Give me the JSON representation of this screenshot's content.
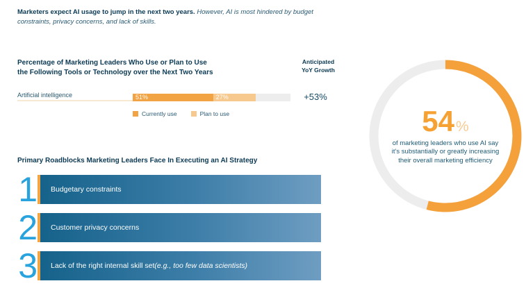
{
  "intro": {
    "bold": "Marketers expect AI usage to jump in the next two years.",
    "italic": " However, AI is most hindered by budget constraints, privacy concerns, and lack of skills."
  },
  "usage_chart": {
    "title_line1": "Percentage of Marketing Leaders Who Use or Plan to Use",
    "title_line2": "the Following Tools or Technology over the Next Two Years",
    "growth_header": "Anticipated YoY Growth",
    "category": "Artificial intelligence",
    "currently_use_label": "51%",
    "plan_to_use_label": "27%",
    "growth_value": "+53%",
    "legend": [
      {
        "label": "Currently use",
        "color": "#f2a444"
      },
      {
        "label": "Plan to use",
        "color": "#f7c98e"
      }
    ]
  },
  "roadblocks": {
    "title": "Primary Roadblocks Marketing Leaders Face In Executing an AI Strategy",
    "items": [
      {
        "rank": "1",
        "label": "Budgetary constraints",
        "label_italic": ""
      },
      {
        "rank": "2",
        "label": "Customer privacy concerns",
        "label_italic": ""
      },
      {
        "rank": "3",
        "label": "Lack of the right internal skill set ",
        "label_italic": "(e.g., too few data scientists)"
      }
    ]
  },
  "donut": {
    "value": 54,
    "unit": "%",
    "caption_lines": [
      "of marketing leaders who use AI say",
      "it’s substantially or greatly increasing",
      "their overall marketing efficiency"
    ]
  },
  "colors": {
    "navy": "#0c3a54",
    "body_navy": "#2a5a74",
    "orange": "#f2a444",
    "light_orange": "#f7c98e",
    "track_gray": "#ededed",
    "label_underline": "#f8ead2",
    "number_blue": "#29a3dd",
    "bar_gradient_start": "#15628b",
    "bar_gradient_end": "#6f9dc2",
    "donut_orange": "#f5a13b",
    "donut_gray": "#ededed"
  },
  "chart_data": [
    {
      "type": "bar",
      "subtype": "horizontal-stacked",
      "title": "Percentage of Marketing Leaders Who Use or Plan to Use the Following Tools or Technology over the Next Two Years",
      "categories": [
        "Artificial intelligence"
      ],
      "series": [
        {
          "name": "Currently use",
          "values": [
            51
          ],
          "color": "#f2a444"
        },
        {
          "name": "Plan to use",
          "values": [
            27
          ],
          "color": "#f7c98e"
        }
      ],
      "xlim": [
        0,
        100
      ],
      "grid": false,
      "legend_position": "bottom",
      "annotations": {
        "anticipated_yoy_growth": "+53%"
      }
    },
    {
      "type": "pie",
      "subtype": "donut",
      "values": [
        54,
        46
      ],
      "labels": [
        "54%",
        "remainder"
      ],
      "colors": [
        "#f5a13b",
        "#ededed"
      ],
      "start_angle_deg": 0,
      "direction": "clockwise",
      "center_label": "54%",
      "title": "of marketing leaders who use AI say it’s substantially or greatly increasing their overall marketing efficiency"
    }
  ]
}
